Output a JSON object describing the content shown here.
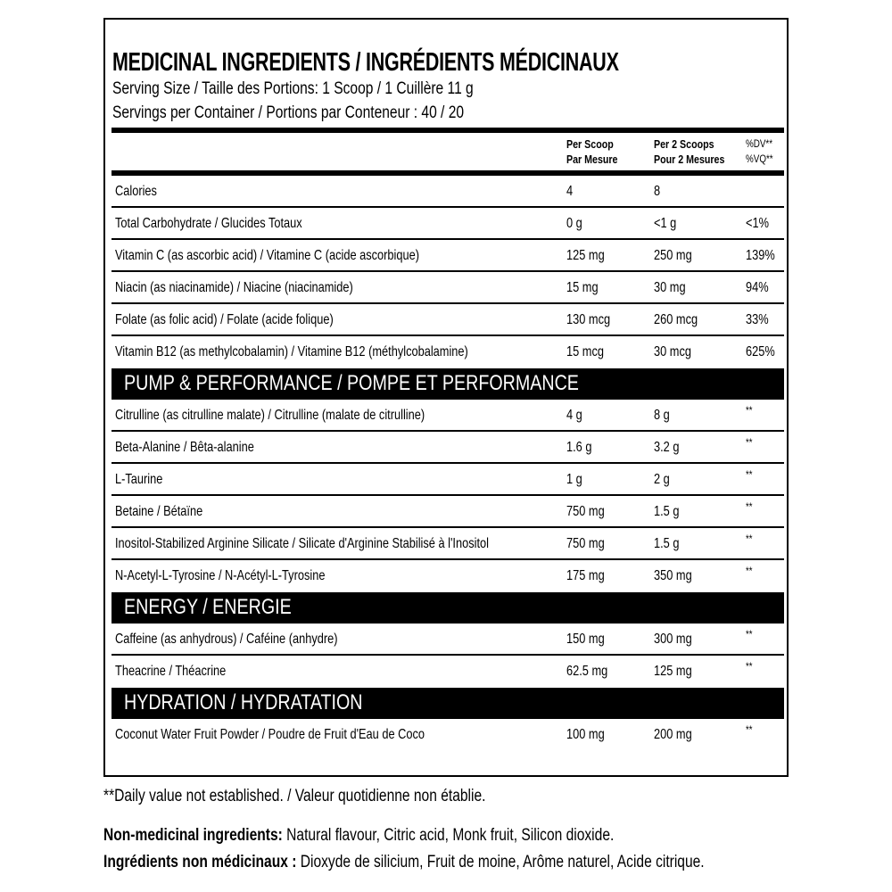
{
  "title": "MEDICINAL INGREDIENTS / INGRÉDIENTS MÉDICINAUX",
  "serving_size": "Serving Size / Taille des Portions: 1 Scoop / 1 Cuillère 11 g",
  "servings_per_container": "Servings per Container / Portions par Conteneur : 40 / 20",
  "columns": {
    "per_scoop": [
      "Per Scoop",
      "Par Mesure"
    ],
    "per_2_scoops": [
      "Per 2 Scoops",
      "Pour 2 Mesures"
    ],
    "dv": [
      "%DV**",
      "%VQ**"
    ]
  },
  "blocks": [
    {
      "rows": [
        {
          "name": "Calories",
          "one": "4",
          "two": "8",
          "dv": ""
        },
        {
          "name": "Total Carbohydrate / Glucides Totaux",
          "one": "0 g",
          "two": "<1 g",
          "dv": "<1%"
        },
        {
          "name": "Vitamin C (as ascorbic acid) / Vitamine C (acide ascorbique)",
          "one": "125 mg",
          "two": "250 mg",
          "dv": "139%"
        },
        {
          "name": "Niacin (as niacinamide) / Niacine (niacinamide)",
          "one": "15 mg",
          "two": "30 mg",
          "dv": "94%"
        },
        {
          "name": "Folate (as folic acid) / Folate (acide folique)",
          "one": "130 mcg",
          "two": "260 mcg",
          "dv": "33%"
        },
        {
          "name": "Vitamin B12 (as methylcobalamin) / Vitamine B12 (méthylcobalamine)",
          "one": "15 mcg",
          "two": "30 mcg",
          "dv": "625%"
        }
      ]
    },
    {
      "section": "PUMP & PERFORMANCE / POMPE ET PERFORMANCE",
      "rows": [
        {
          "name": "Citrulline (as citrulline malate) / Citrulline (malate de citrulline)",
          "one": "4 g",
          "two": "8 g",
          "dv": "**"
        },
        {
          "name": "Beta-Alanine / Bêta-alanine",
          "one": "1.6 g",
          "two": "3.2 g",
          "dv": "**"
        },
        {
          "name": "L-Taurine",
          "one": "1 g",
          "two": "2 g",
          "dv": "**"
        },
        {
          "name": "Betaine / Bétaïne",
          "one": "750 mg",
          "two": "1.5 g",
          "dv": "**"
        },
        {
          "name": "Inositol-Stabilized Arginine Silicate / Silicate d'Arginine Stabilisé à l'Inositol",
          "one": "750 mg",
          "two": "1.5 g",
          "dv": "**"
        },
        {
          "name": "N-Acetyl-L-Tyrosine / N-Acétyl-L-Tyrosine",
          "one": "175 mg",
          "two": "350 mg",
          "dv": "**"
        }
      ]
    },
    {
      "section": "ENERGY / ENERGIE",
      "rows": [
        {
          "name": "Caffeine (as anhydrous) / Caféine (anhydre)",
          "one": "150 mg",
          "two": "300 mg",
          "dv": "**"
        },
        {
          "name": "Theacrine / Théacrine",
          "one": "62.5 mg",
          "two": "125 mg",
          "dv": "**"
        }
      ]
    },
    {
      "section": "HYDRATION / HYDRATATION",
      "rows": [
        {
          "name": "Coconut Water Fruit Powder / Poudre de Fruit d'Eau de Coco",
          "one": "100 mg",
          "two": "200 mg",
          "dv": "**"
        }
      ]
    }
  ],
  "footnote": "**Daily value not established. / Valeur quotidienne non établie.",
  "non_medicinal": {
    "label": "Non-medicinal ingredients:",
    "text": " Natural flavour, Citric acid, Monk fruit, Silicon dioxide."
  },
  "non_medicinal_fr": {
    "label": "Ingrédients non médicinaux :",
    "text": " Dioxyde de silicium, Fruit de moine, Arôme naturel, Acide citrique."
  }
}
